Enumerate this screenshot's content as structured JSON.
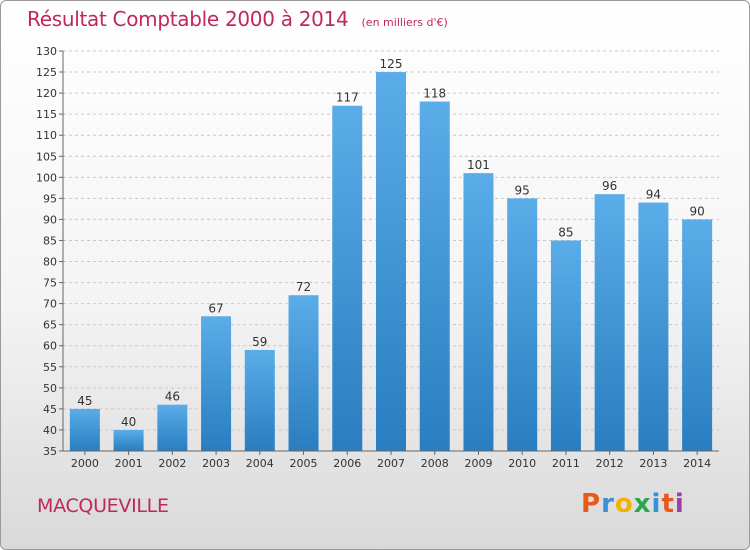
{
  "header": {
    "title": "Résultat Comptable 2000 à 2014",
    "unit": "(en milliers d'€)"
  },
  "footer": {
    "town": "MACQUEVILLE",
    "brand": [
      "P",
      "r",
      "o",
      "x",
      "i",
      "t",
      "i"
    ],
    "brand_colors": [
      "#e8591a",
      "#3a8fd9",
      "#f0b400",
      "#2aa84a",
      "#3a8fd9",
      "#e8591a",
      "#9c3fa8"
    ]
  },
  "colors": {
    "bar_top": "#5aade8",
    "bar_bottom": "#2a7dbf",
    "text_accent": "#c0285a"
  },
  "chart_data": {
    "type": "bar",
    "categories": [
      "2000",
      "2001",
      "2002",
      "2003",
      "2004",
      "2005",
      "2006",
      "2007",
      "2008",
      "2009",
      "2010",
      "2011",
      "2012",
      "2013",
      "2014"
    ],
    "values": [
      45,
      40,
      46,
      67,
      59,
      72,
      117,
      125,
      118,
      101,
      95,
      85,
      96,
      94,
      90
    ],
    "ylim": [
      35,
      130
    ],
    "yticks": [
      35,
      40,
      45,
      50,
      55,
      60,
      65,
      70,
      75,
      80,
      85,
      90,
      95,
      100,
      105,
      110,
      115,
      120,
      125,
      130
    ],
    "grid": true
  }
}
